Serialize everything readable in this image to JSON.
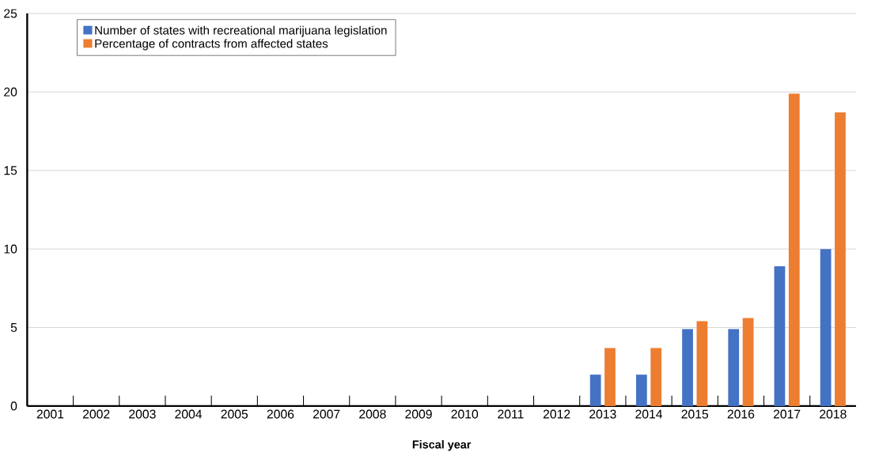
{
  "chart_data": {
    "type": "bar",
    "xlabel": "Fiscal year",
    "categories": [
      "2001",
      "2002",
      "2003",
      "2004",
      "2005",
      "2006",
      "2007",
      "2008",
      "2009",
      "2010",
      "2011",
      "2012",
      "2013",
      "2014",
      "2015",
      "2016",
      "2017",
      "2018"
    ],
    "series": [
      {
        "name": "Number of states with recreational marijuana legislation",
        "color": "#4472c4",
        "values": [
          null,
          null,
          null,
          null,
          null,
          null,
          null,
          null,
          null,
          null,
          null,
          null,
          2,
          2,
          4.9,
          4.9,
          8.9,
          10
        ]
      },
      {
        "name": "Percentage of contracts from affected states",
        "color": "#ed7d31",
        "values": [
          null,
          null,
          null,
          null,
          null,
          null,
          null,
          null,
          null,
          null,
          null,
          null,
          3.7,
          3.7,
          5.4,
          5.6,
          19.9,
          18.7
        ]
      }
    ],
    "ylim": [
      0,
      25
    ],
    "yticks": [
      0,
      5,
      10,
      15,
      20,
      25
    ],
    "grid": "y",
    "legend": "top left"
  }
}
